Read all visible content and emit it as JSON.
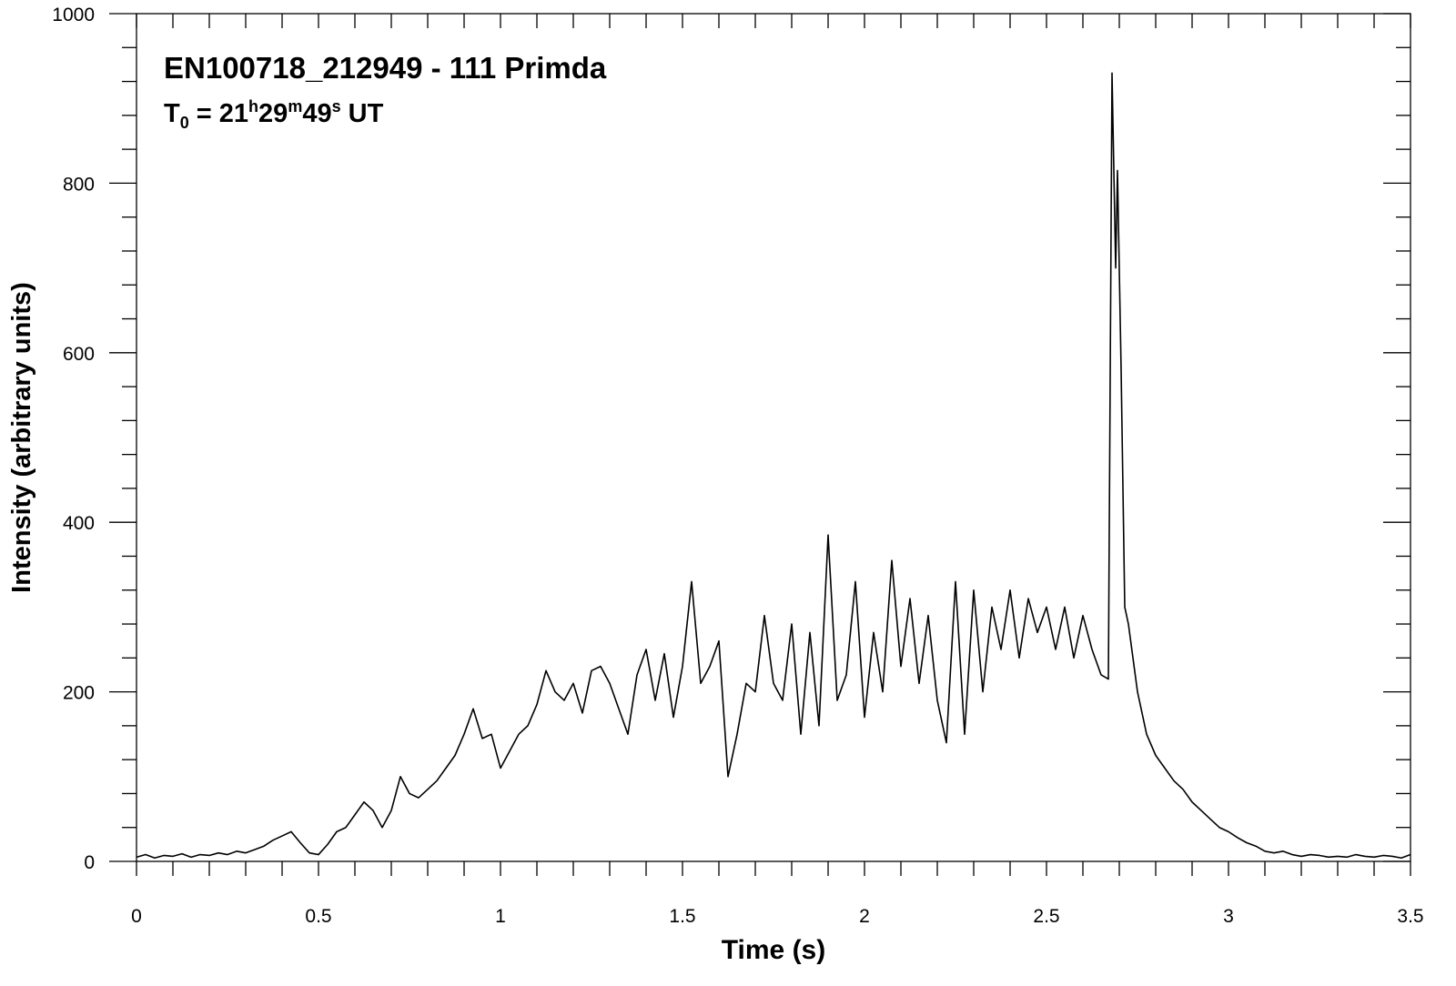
{
  "chart_data": {
    "type": "line",
    "title": "EN100718_212949 - 111 Primda",
    "subtitle_parts": [
      {
        "text": "T",
        "shift": "none"
      },
      {
        "text": "0",
        "shift": "sub"
      },
      {
        "text": " = 21",
        "shift": "none"
      },
      {
        "text": "h",
        "shift": "sup"
      },
      {
        "text": "29",
        "shift": "none"
      },
      {
        "text": "m",
        "shift": "sup"
      },
      {
        "text": "49",
        "shift": "none"
      },
      {
        "text": "s",
        "shift": "sup"
      },
      {
        "text": " UT",
        "shift": "none"
      }
    ],
    "x_label": "Time (s)",
    "y_label": "Intensity (arbitrary units)",
    "xlim": [
      0,
      3.5
    ],
    "ylim": [
      0,
      1000
    ],
    "xticks": [
      0,
      0.5,
      1,
      1.5,
      2,
      2.5,
      3,
      3.5
    ],
    "yticks": [
      0,
      200,
      400,
      600,
      800,
      1000
    ],
    "xminorticks": [
      0.1,
      0.2,
      0.3,
      0.4,
      0.6,
      0.7,
      0.8,
      0.9,
      1.1,
      1.2,
      1.3,
      1.4,
      1.6,
      1.7,
      1.8,
      1.9,
      2.1,
      2.2,
      2.3,
      2.4,
      2.6,
      2.7,
      2.8,
      2.9,
      3.1,
      3.2,
      3.3,
      3.4
    ],
    "yminorticks": [
      40,
      80,
      120,
      160,
      240,
      280,
      320,
      360,
      440,
      480,
      520,
      560,
      640,
      680,
      720,
      760,
      840,
      880,
      920,
      960
    ],
    "color": "#000000",
    "x": [
      0,
      0.025,
      0.05,
      0.075,
      0.1,
      0.125,
      0.15,
      0.175,
      0.2,
      0.225,
      0.25,
      0.275,
      0.3,
      0.325,
      0.35,
      0.375,
      0.4,
      0.425,
      0.45,
      0.475,
      0.5,
      0.525,
      0.55,
      0.575,
      0.6,
      0.625,
      0.65,
      0.675,
      0.7,
      0.725,
      0.75,
      0.775,
      0.8,
      0.825,
      0.85,
      0.875,
      0.9,
      0.925,
      0.95,
      0.975,
      1.0,
      1.025,
      1.05,
      1.075,
      1.1,
      1.125,
      1.15,
      1.175,
      1.2,
      1.225,
      1.25,
      1.275,
      1.3,
      1.325,
      1.35,
      1.375,
      1.4,
      1.425,
      1.45,
      1.475,
      1.5,
      1.525,
      1.55,
      1.575,
      1.6,
      1.625,
      1.65,
      1.675,
      1.7,
      1.725,
      1.75,
      1.775,
      1.8,
      1.825,
      1.85,
      1.875,
      1.9,
      1.925,
      1.95,
      1.975,
      2.0,
      2.025,
      2.05,
      2.075,
      2.1,
      2.125,
      2.15,
      2.175,
      2.2,
      2.225,
      2.25,
      2.275,
      2.3,
      2.325,
      2.35,
      2.375,
      2.4,
      2.425,
      2.45,
      2.475,
      2.5,
      2.525,
      2.55,
      2.575,
      2.6,
      2.625,
      2.65,
      2.67,
      2.68,
      2.69,
      2.695,
      2.705,
      2.715,
      2.725,
      2.75,
      2.775,
      2.8,
      2.825,
      2.85,
      2.875,
      2.9,
      2.925,
      2.95,
      2.975,
      3.0,
      3.025,
      3.05,
      3.075,
      3.1,
      3.125,
      3.15,
      3.175,
      3.2,
      3.225,
      3.25,
      3.275,
      3.3,
      3.325,
      3.35,
      3.375,
      3.4,
      3.425,
      3.45,
      3.475,
      3.5
    ],
    "values": [
      5,
      8,
      4,
      7,
      6,
      9,
      5,
      8,
      7,
      10,
      8,
      12,
      10,
      14,
      18,
      25,
      30,
      35,
      22,
      10,
      8,
      20,
      35,
      40,
      55,
      70,
      60,
      40,
      60,
      100,
      80,
      75,
      85,
      95,
      110,
      125,
      150,
      180,
      145,
      150,
      110,
      130,
      150,
      160,
      185,
      225,
      200,
      190,
      210,
      175,
      225,
      230,
      210,
      180,
      150,
      220,
      250,
      190,
      245,
      170,
      230,
      330,
      210,
      230,
      260,
      100,
      150,
      210,
      200,
      290,
      210,
      190,
      280,
      150,
      270,
      160,
      385,
      190,
      220,
      330,
      170,
      270,
      200,
      355,
      230,
      310,
      210,
      290,
      190,
      140,
      330,
      150,
      320,
      200,
      300,
      250,
      320,
      240,
      310,
      270,
      300,
      250,
      300,
      240,
      290,
      250,
      220,
      215,
      930,
      700,
      815,
      580,
      300,
      280,
      200,
      150,
      125,
      110,
      95,
      85,
      70,
      60,
      50,
      40,
      35,
      28,
      22,
      18,
      12,
      10,
      12,
      8,
      6,
      8,
      7,
      5,
      6,
      5,
      8,
      6,
      5,
      7,
      6,
      4,
      8
    ]
  }
}
